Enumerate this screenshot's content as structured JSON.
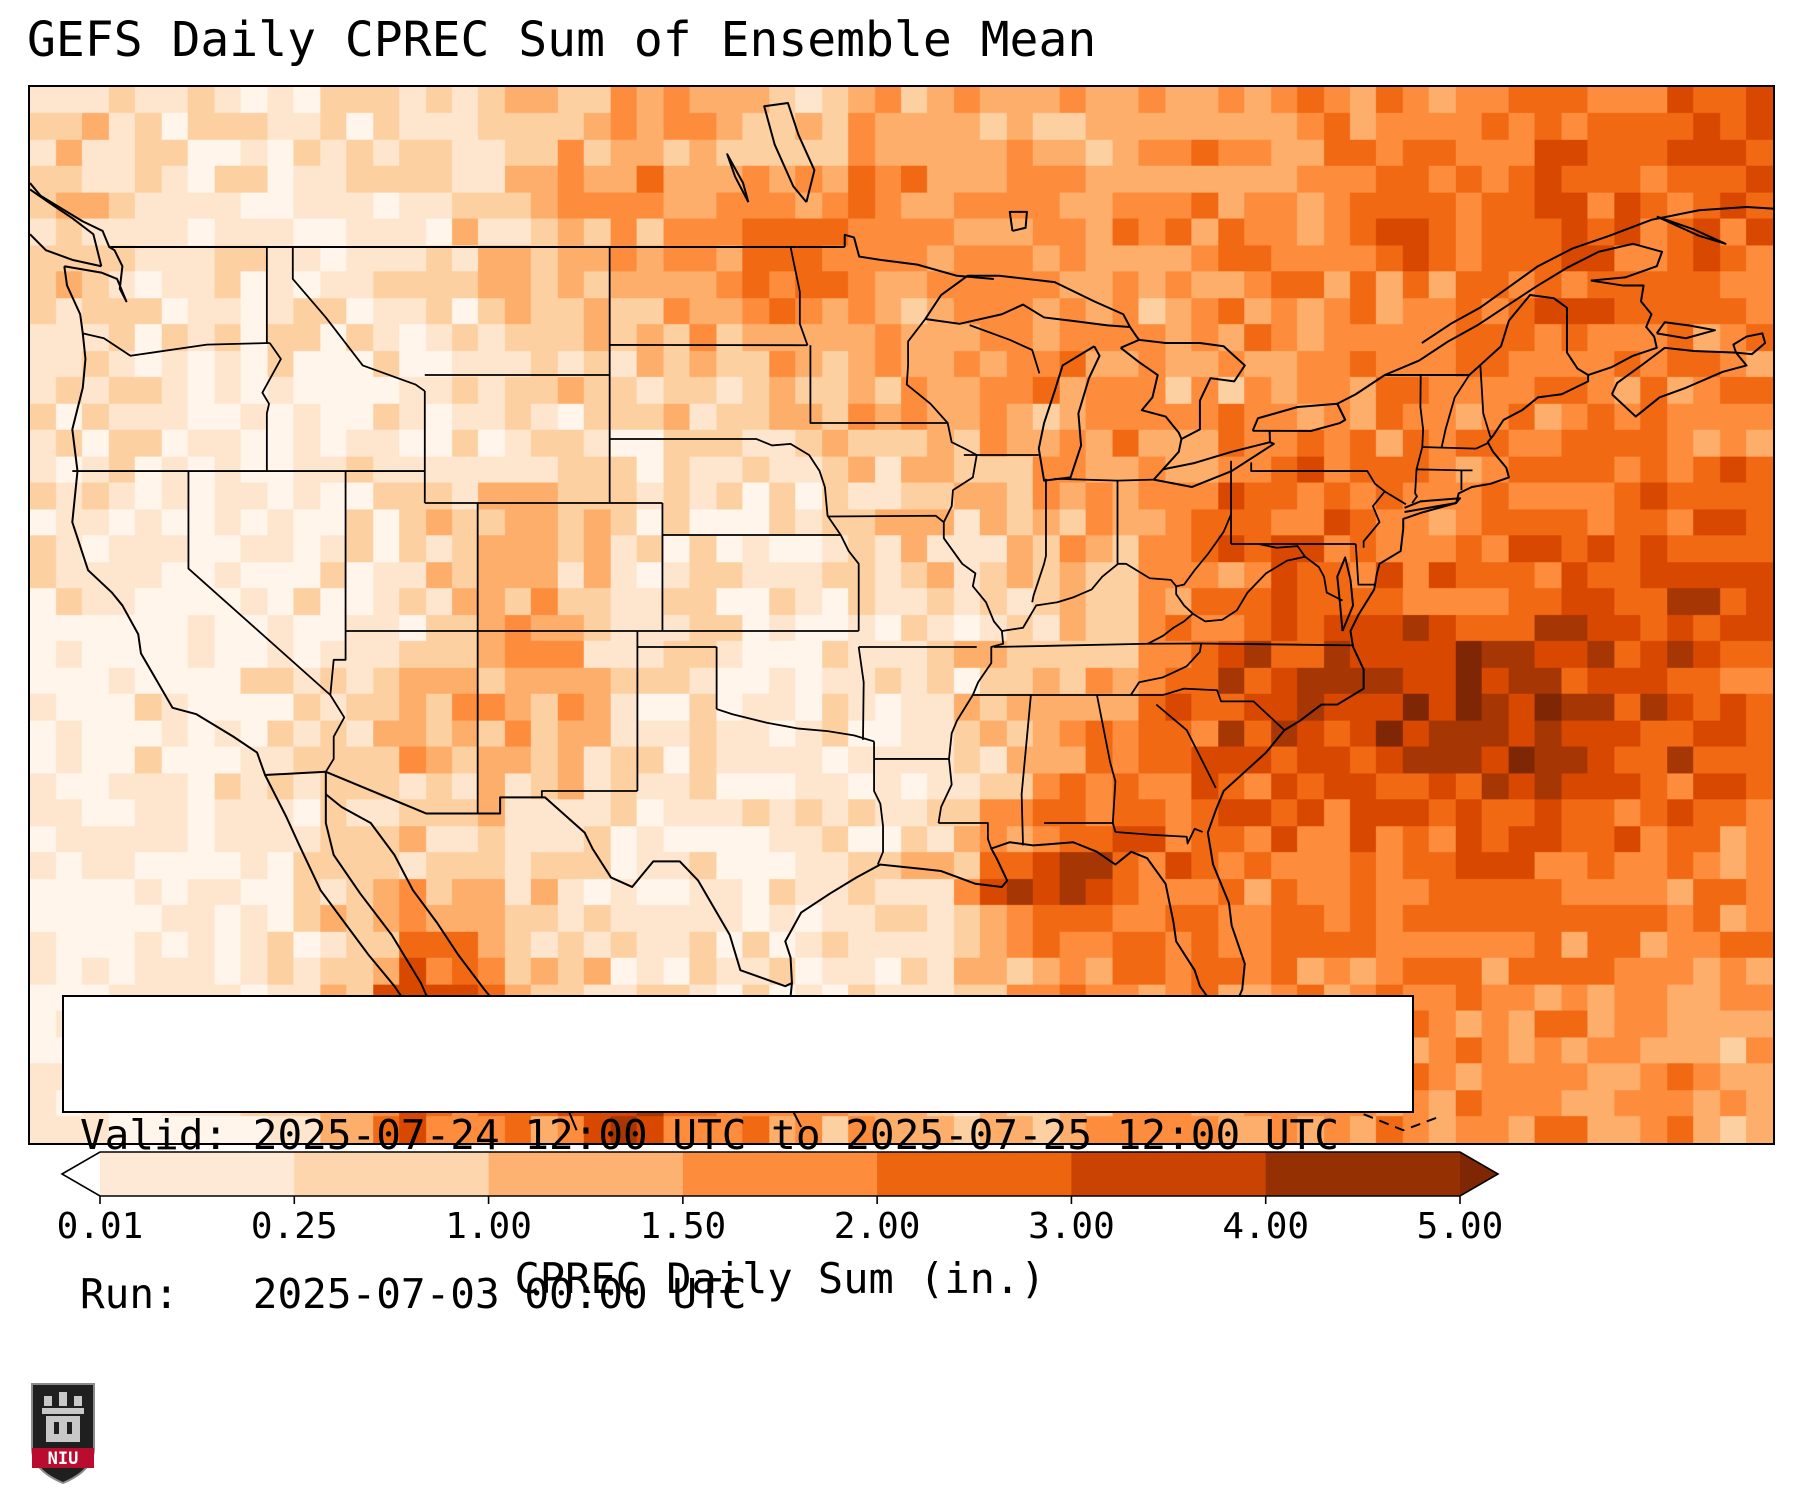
{
  "title": "GEFS Daily CPREC Sum of Ensemble Mean",
  "info": {
    "valid_line": "Valid: 2025-07-24 12:00 UTC to 2025-07-25 12:00 UTC",
    "run_line": "Run:   2025-07-03 00:00 UTC"
  },
  "colorbar": {
    "label": "CPREC Daily Sum (in.)",
    "tick_labels": [
      "0.01",
      "0.25",
      "1.00",
      "1.50",
      "2.00",
      "3.00",
      "4.00",
      "5.00"
    ],
    "levels_inches": [
      0.01,
      0.25,
      1.0,
      1.5,
      2.0,
      3.0,
      4.0,
      5.0
    ],
    "segment_colors": [
      "#fee9d6",
      "#fdd6ad",
      "#fdb272",
      "#fd8d3c",
      "#ee650f",
      "#ca4302",
      "#953003"
    ],
    "under_color": "#ffffff",
    "over_color": "#7f2704"
  },
  "logo": {
    "text": "NIU",
    "banner_color": "#ba0c2f",
    "shield_color": "#1f1f1f"
  },
  "map_data": {
    "type": "heatmap",
    "variable": "CPREC Daily Sum (in.)",
    "region": "CONUS",
    "colormap": "Oranges",
    "lon_range": [
      -126,
      -60
    ],
    "lat_range": [
      21,
      54
    ],
    "grid_cols": 33,
    "grid_rows": 22,
    "grid": [
      [
        22,
        30,
        18,
        12,
        10,
        12,
        10,
        12,
        15,
        20,
        40,
        45,
        40,
        32,
        26,
        32,
        40,
        45,
        40,
        35,
        40,
        45,
        42,
        46,
        50,
        55,
        52,
        56,
        60,
        56,
        62,
        70,
        64
      ],
      [
        18,
        25,
        15,
        10,
        10,
        12,
        12,
        15,
        18,
        25,
        35,
        45,
        40,
        30,
        28,
        34,
        42,
        48,
        42,
        38,
        42,
        46,
        42,
        46,
        52,
        56,
        52,
        56,
        62,
        58,
        62,
        68,
        62
      ],
      [
        15,
        22,
        14,
        10,
        12,
        14,
        14,
        16,
        20,
        28,
        38,
        48,
        45,
        35,
        40,
        45,
        50,
        45,
        40,
        40,
        45,
        48,
        45,
        48,
        55,
        58,
        55,
        58,
        65,
        60,
        60,
        65,
        58
      ],
      [
        12,
        20,
        16,
        12,
        14,
        16,
        15,
        18,
        22,
        30,
        35,
        40,
        42,
        46,
        55,
        60,
        55,
        48,
        42,
        42,
        48,
        50,
        48,
        52,
        58,
        60,
        58,
        62,
        66,
        62,
        58,
        62,
        55
      ],
      [
        26,
        34,
        15,
        10,
        12,
        14,
        12,
        14,
        18,
        25,
        30,
        35,
        40,
        50,
        55,
        50,
        45,
        42,
        45,
        48,
        45,
        42,
        45,
        50,
        55,
        52,
        55,
        58,
        62,
        58,
        55,
        58,
        52
      ],
      [
        18,
        22,
        12,
        8,
        10,
        12,
        10,
        12,
        15,
        20,
        25,
        28,
        30,
        35,
        40,
        42,
        40,
        42,
        45,
        48,
        45,
        40,
        42,
        48,
        52,
        50,
        52,
        55,
        58,
        55,
        52,
        55,
        50
      ],
      [
        15,
        18,
        10,
        6,
        8,
        10,
        8,
        10,
        14,
        18,
        20,
        22,
        22,
        25,
        30,
        35,
        38,
        42,
        45,
        45,
        42,
        40,
        40,
        45,
        48,
        48,
        50,
        52,
        55,
        52,
        50,
        52,
        48
      ],
      [
        12,
        14,
        8,
        5,
        6,
        8,
        8,
        10,
        12,
        15,
        18,
        18,
        18,
        20,
        25,
        28,
        32,
        38,
        40,
        42,
        45,
        48,
        52,
        55,
        52,
        50,
        50,
        52,
        55,
        52,
        50,
        52,
        50
      ],
      [
        8,
        10,
        6,
        4,
        5,
        8,
        10,
        12,
        15,
        18,
        20,
        18,
        15,
        15,
        18,
        22,
        25,
        28,
        30,
        35,
        40,
        50,
        60,
        65,
        60,
        52,
        50,
        52,
        55,
        58,
        60,
        62,
        60
      ],
      [
        6,
        8,
        5,
        4,
        6,
        10,
        14,
        18,
        28,
        36,
        30,
        18,
        14,
        12,
        14,
        18,
        22,
        25,
        28,
        32,
        38,
        45,
        58,
        65,
        62,
        58,
        55,
        58,
        60,
        62,
        65,
        68,
        65
      ],
      [
        5,
        6,
        4,
        4,
        5,
        8,
        12,
        16,
        25,
        40,
        32,
        16,
        12,
        10,
        12,
        15,
        18,
        20,
        22,
        25,
        30,
        42,
        55,
        62,
        65,
        62,
        60,
        62,
        65,
        68,
        70,
        72,
        68
      ],
      [
        4,
        5,
        4,
        4,
        6,
        8,
        14,
        20,
        30,
        42,
        35,
        18,
        12,
        10,
        10,
        12,
        15,
        18,
        20,
        22,
        30,
        48,
        62,
        68,
        72,
        75,
        78,
        80,
        78,
        75,
        72,
        74,
        70
      ],
      [
        4,
        5,
        5,
        6,
        8,
        12,
        20,
        28,
        35,
        45,
        38,
        20,
        12,
        10,
        10,
        12,
        15,
        18,
        22,
        30,
        42,
        62,
        76,
        82,
        85,
        88,
        88,
        85,
        82,
        78,
        72,
        70,
        66
      ],
      [
        5,
        6,
        6,
        8,
        10,
        15,
        25,
        35,
        38,
        40,
        30,
        18,
        12,
        10,
        10,
        12,
        14,
        18,
        25,
        42,
        56,
        66,
        70,
        76,
        80,
        86,
        88,
        90,
        88,
        82,
        75,
        70,
        65
      ],
      [
        5,
        6,
        6,
        8,
        10,
        14,
        22,
        30,
        30,
        28,
        20,
        14,
        10,
        9,
        10,
        12,
        14,
        18,
        32,
        52,
        60,
        62,
        60,
        62,
        65,
        70,
        75,
        78,
        75,
        70,
        65,
        60,
        58
      ],
      [
        4,
        5,
        5,
        6,
        8,
        12,
        18,
        25,
        25,
        22,
        16,
        12,
        10,
        9,
        10,
        12,
        15,
        25,
        55,
        70,
        64,
        60,
        55,
        58,
        60,
        62,
        65,
        68,
        65,
        60,
        58,
        55,
        52
      ],
      [
        4,
        5,
        5,
        6,
        8,
        14,
        25,
        35,
        30,
        25,
        18,
        12,
        10,
        9,
        10,
        12,
        18,
        30,
        75,
        85,
        65,
        58,
        55,
        55,
        58,
        60,
        62,
        60,
        58,
        55,
        52,
        50,
        48
      ],
      [
        3,
        4,
        4,
        5,
        8,
        15,
        30,
        55,
        50,
        30,
        20,
        12,
        10,
        8,
        10,
        12,
        15,
        25,
        40,
        52,
        55,
        52,
        50,
        52,
        55,
        58,
        58,
        55,
        52,
        50,
        48,
        46,
        45
      ],
      [
        3,
        4,
        4,
        5,
        8,
        18,
        35,
        70,
        60,
        35,
        22,
        14,
        10,
        9,
        10,
        12,
        15,
        22,
        35,
        45,
        50,
        50,
        48,
        50,
        52,
        55,
        55,
        52,
        50,
        48,
        46,
        45,
        44
      ],
      [
        3,
        4,
        4,
        5,
        8,
        20,
        40,
        85,
        75,
        50,
        30,
        20,
        15,
        12,
        12,
        14,
        16,
        22,
        32,
        42,
        48,
        48,
        46,
        48,
        50,
        52,
        52,
        50,
        48,
        46,
        45,
        44,
        43
      ],
      [
        4,
        5,
        5,
        6,
        10,
        25,
        45,
        70,
        65,
        55,
        60,
        75,
        70,
        60,
        50,
        38,
        30,
        28,
        30,
        38,
        45,
        46,
        45,
        46,
        48,
        50,
        50,
        48,
        46,
        45,
        44,
        43,
        42
      ],
      [
        4,
        5,
        5,
        6,
        10,
        22,
        40,
        60,
        55,
        50,
        55,
        70,
        65,
        55,
        45,
        35,
        28,
        26,
        28,
        35,
        42,
        44,
        44,
        45,
        46,
        48,
        48,
        46,
        45,
        44,
        43,
        42,
        41
      ]
    ]
  }
}
